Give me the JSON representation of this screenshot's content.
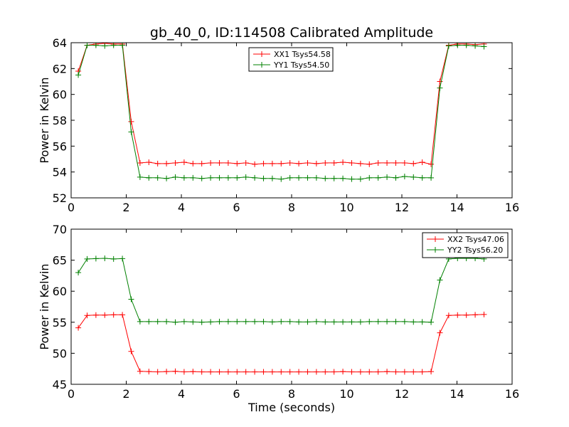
{
  "chart_data": [
    {
      "type": "line",
      "title": "gb_40_0, ID:114508 Calibrated Amplitude",
      "xlabel": "",
      "ylabel": "Power in Kelvin",
      "xlim": [
        0,
        16
      ],
      "ylim": [
        52,
        64
      ],
      "xticks": [
        "0",
        "2",
        "4",
        "6",
        "8",
        "10",
        "12",
        "14",
        "16"
      ],
      "yticks": [
        "52",
        "54",
        "56",
        "58",
        "60",
        "62",
        "64"
      ],
      "legend_position": "upper-center",
      "x": [
        0.26,
        0.58,
        0.9,
        1.22,
        1.54,
        1.86,
        2.18,
        2.5,
        2.82,
        3.14,
        3.46,
        3.78,
        4.1,
        4.42,
        4.74,
        5.06,
        5.38,
        5.7,
        6.02,
        6.34,
        6.66,
        6.98,
        7.3,
        7.62,
        7.94,
        8.26,
        8.58,
        8.9,
        9.22,
        9.54,
        9.86,
        10.18,
        10.5,
        10.82,
        11.14,
        11.46,
        11.78,
        12.1,
        12.42,
        12.74,
        13.06,
        13.38,
        13.7,
        14.02,
        14.34,
        14.66,
        14.98
      ],
      "series": [
        {
          "name": "XX1 Tsys54.58",
          "color": "#ff0000",
          "values": [
            61.8,
            63.8,
            63.9,
            63.95,
            63.9,
            63.9,
            57.9,
            54.7,
            54.75,
            54.65,
            54.65,
            54.7,
            54.75,
            54.65,
            54.65,
            54.7,
            54.7,
            54.7,
            54.65,
            54.7,
            54.6,
            54.65,
            54.65,
            54.65,
            54.7,
            54.65,
            54.7,
            54.65,
            54.7,
            54.7,
            54.75,
            54.7,
            54.65,
            54.6,
            54.7,
            54.7,
            54.7,
            54.7,
            54.65,
            54.75,
            54.6,
            61.0,
            63.8,
            63.9,
            63.9,
            63.85,
            63.9
          ]
        },
        {
          "name": "YY1 Tsys54.50",
          "color": "#008000",
          "values": [
            61.5,
            63.8,
            63.8,
            63.75,
            63.8,
            63.8,
            57.1,
            53.6,
            53.55,
            53.55,
            53.5,
            53.6,
            53.55,
            53.55,
            53.5,
            53.55,
            53.55,
            53.55,
            53.55,
            53.6,
            53.55,
            53.5,
            53.5,
            53.45,
            53.55,
            53.55,
            53.55,
            53.55,
            53.5,
            53.5,
            53.5,
            53.45,
            53.45,
            53.55,
            53.55,
            53.6,
            53.55,
            53.65,
            53.6,
            53.55,
            53.55,
            60.5,
            63.75,
            63.8,
            63.8,
            63.75,
            63.7
          ]
        }
      ]
    },
    {
      "type": "line",
      "title": "",
      "xlabel": "Time (seconds)",
      "ylabel": "Power in Kelvin",
      "xlim": [
        0,
        16
      ],
      "ylim": [
        45,
        70
      ],
      "xticks": [
        "0",
        "2",
        "4",
        "6",
        "8",
        "10",
        "12",
        "14",
        "16"
      ],
      "yticks": [
        "45",
        "50",
        "55",
        "60",
        "65",
        "70"
      ],
      "legend_position": "upper-right",
      "x": [
        0.26,
        0.58,
        0.9,
        1.22,
        1.54,
        1.86,
        2.18,
        2.5,
        2.82,
        3.14,
        3.46,
        3.78,
        4.1,
        4.42,
        4.74,
        5.06,
        5.38,
        5.7,
        6.02,
        6.34,
        6.66,
        6.98,
        7.3,
        7.62,
        7.94,
        8.26,
        8.58,
        8.9,
        9.22,
        9.54,
        9.86,
        10.18,
        10.5,
        10.82,
        11.14,
        11.46,
        11.78,
        12.1,
        12.42,
        12.74,
        13.06,
        13.38,
        13.7,
        14.02,
        14.34,
        14.66,
        14.98
      ],
      "series": [
        {
          "name": "XX2 Tsys47.06",
          "color": "#ff0000",
          "values": [
            54.1,
            56.1,
            56.15,
            56.15,
            56.2,
            56.2,
            50.3,
            47.1,
            47.05,
            47.0,
            47.05,
            47.1,
            47.0,
            47.05,
            47.0,
            47.0,
            47.0,
            47.0,
            47.0,
            47.0,
            47.0,
            47.0,
            47.0,
            47.0,
            47.0,
            47.0,
            47.0,
            47.0,
            47.0,
            47.0,
            47.05,
            47.0,
            47.0,
            47.0,
            47.0,
            47.05,
            47.0,
            47.0,
            47.0,
            47.0,
            47.05,
            53.3,
            56.1,
            56.15,
            56.15,
            56.2,
            56.25
          ]
        },
        {
          "name": "YY2 Tsys56.20",
          "color": "#008000",
          "values": [
            63.0,
            65.2,
            65.25,
            65.3,
            65.2,
            65.25,
            58.7,
            55.1,
            55.1,
            55.1,
            55.1,
            55.0,
            55.1,
            55.05,
            55.0,
            55.05,
            55.1,
            55.1,
            55.1,
            55.1,
            55.1,
            55.1,
            55.05,
            55.1,
            55.1,
            55.05,
            55.05,
            55.1,
            55.05,
            55.05,
            55.05,
            55.05,
            55.05,
            55.1,
            55.1,
            55.1,
            55.1,
            55.1,
            55.05,
            55.05,
            55.0,
            61.8,
            65.2,
            65.3,
            65.3,
            65.3,
            65.2
          ]
        }
      ]
    }
  ]
}
